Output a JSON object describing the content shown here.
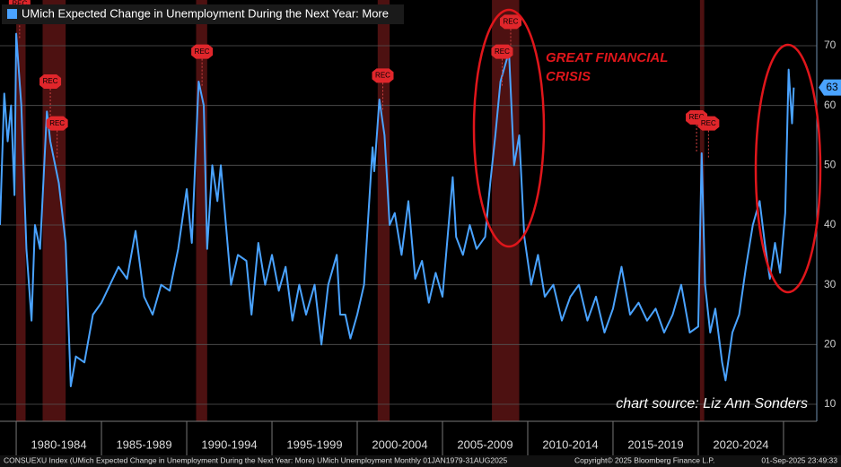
{
  "chart_data": {
    "type": "line",
    "legend": "top-left",
    "series": [
      {
        "name": "UMich Expected Change in Unemployment During the Next Year: More",
        "color": "#4aa3ff",
        "x": [
          1979.05,
          1979.3,
          1979.5,
          1979.7,
          1979.9,
          1980.0,
          1980.3,
          1980.6,
          1980.9,
          1981.1,
          1981.4,
          1981.8,
          1982.0,
          1982.5,
          1982.9,
          1983.2,
          1983.5,
          1984.0,
          1984.5,
          1985.0,
          1985.5,
          1986.0,
          1986.5,
          1987.0,
          1987.5,
          1988.0,
          1988.5,
          1989.0,
          1989.5,
          1990.0,
          1990.3,
          1990.7,
          1991.0,
          1991.2,
          1991.5,
          1991.8,
          1992.0,
          1992.3,
          1992.6,
          1993.0,
          1993.5,
          1993.8,
          1994.2,
          1994.6,
          1995.0,
          1995.4,
          1995.8,
          1996.2,
          1996.6,
          1997.0,
          1997.5,
          1997.9,
          1998.3,
          1998.8,
          1999.0,
          1999.3,
          1999.6,
          2000.0,
          2000.4,
          2000.9,
          2001.0,
          2001.3,
          2001.6,
          2001.9,
          2002.2,
          2002.6,
          2003.0,
          2003.4,
          2003.8,
          2004.2,
          2004.6,
          2005.0,
          2005.6,
          2005.8,
          2006.2,
          2006.6,
          2007.0,
          2007.5,
          2007.8,
          2008.1,
          2008.4,
          2008.9,
          2009.2,
          2009.5,
          2009.8,
          2010.2,
          2010.6,
          2011.0,
          2011.5,
          2012.0,
          2012.5,
          2013.0,
          2013.5,
          2014.0,
          2014.5,
          2015.0,
          2015.5,
          2016.0,
          2016.5,
          2017.0,
          2017.5,
          2018.0,
          2018.5,
          2019.0,
          2019.5,
          2020.0,
          2020.2,
          2020.4,
          2020.7,
          2021.0,
          2021.4,
          2021.6,
          2022.0,
          2022.4,
          2022.8,
          2023.2,
          2023.6,
          2023.9,
          2024.2,
          2024.5,
          2024.8,
          2025.1,
          2025.3,
          2025.5,
          2025.6
        ],
        "values": [
          40,
          62,
          54,
          60,
          45,
          72,
          60,
          36,
          24,
          40,
          36,
          59,
          54,
          47,
          37,
          13,
          18,
          17,
          25,
          27,
          30,
          33,
          31,
          39,
          28,
          25,
          30,
          29,
          36,
          46,
          37,
          64,
          60,
          36,
          50,
          44,
          50,
          40,
          30,
          35,
          34,
          25,
          37,
          30,
          35,
          29,
          33,
          24,
          30,
          25,
          30,
          20,
          30,
          35,
          25,
          25,
          21,
          25,
          30,
          53,
          49,
          61,
          55,
          40,
          42,
          35,
          44,
          31,
          34,
          27,
          32,
          28,
          48,
          38,
          35,
          40,
          36,
          38,
          47,
          55,
          64,
          69,
          50,
          55,
          38,
          30,
          35,
          28,
          30,
          24,
          28,
          30,
          24,
          28,
          22,
          26,
          33,
          25,
          27,
          24,
          26,
          22,
          25,
          30,
          22,
          23,
          52,
          30,
          22,
          26,
          17,
          14,
          22,
          25,
          33,
          40,
          44,
          37,
          31,
          37,
          32,
          42,
          66,
          57,
          63
        ]
      }
    ],
    "recessions": [
      [
        1980.0,
        1980.55
      ],
      [
        1981.55,
        1982.9
      ],
      [
        1990.55,
        1991.2
      ],
      [
        2001.2,
        2001.9
      ],
      [
        2007.9,
        2009.5
      ],
      [
        2020.1,
        2020.35
      ]
    ],
    "annotations": [
      {
        "text": "REC",
        "x": 1980.2,
        "y": 77
      },
      {
        "text": "REC",
        "x": 1982.0,
        "y": 64
      },
      {
        "text": "REC",
        "x": 1982.4,
        "y": 57
      },
      {
        "text": "REC",
        "x": 1990.9,
        "y": 69
      },
      {
        "text": "REC",
        "x": 2001.5,
        "y": 65
      },
      {
        "text": "REC",
        "x": 2008.5,
        "y": 69
      },
      {
        "text": "REC",
        "x": 2009.0,
        "y": 74
      },
      {
        "text": "REC",
        "x": 2019.9,
        "y": 58
      },
      {
        "text": "REC",
        "x": 2020.6,
        "y": 57
      }
    ],
    "callout": "GREAT FINANCIAL CRISIS",
    "source": "chart source: Liz Ann Sonders",
    "footer": [
      "CONSUEXU Index (UMich Expected Change in Unemployment During the Next Year: More) UMich Unemployment  Monthly 01JAN1979-31AUG2025",
      "Copyright© 2025 Bloomberg Finance L.P.",
      "01-Sep-2025 23:49:33"
    ],
    "xlim": [
      1979.05,
      2026.95
    ],
    "x_separators": [
      1980,
      1985,
      1990,
      1995,
      2000,
      2005,
      2010,
      2015,
      2020,
      2025
    ],
    "xticks": [
      {
        "value": 1982.5,
        "label": "1980-1984"
      },
      {
        "value": 1987.5,
        "label": "1985-1989"
      },
      {
        "value": 1992.5,
        "label": "1990-1994"
      },
      {
        "value": 1997.5,
        "label": "1995-1999"
      },
      {
        "value": 2002.5,
        "label": "2000-2004"
      },
      {
        "value": 2007.5,
        "label": "2005-2009"
      },
      {
        "value": 2012.5,
        "label": "2010-2014"
      },
      {
        "value": 2017.5,
        "label": "2015-2019"
      },
      {
        "value": 2022.5,
        "label": "2020-2024"
      }
    ],
    "ylim": [
      7.15,
      77.65
    ],
    "yticks": [
      10,
      20,
      30,
      40,
      50,
      60,
      70
    ],
    "grid": true
  }
}
